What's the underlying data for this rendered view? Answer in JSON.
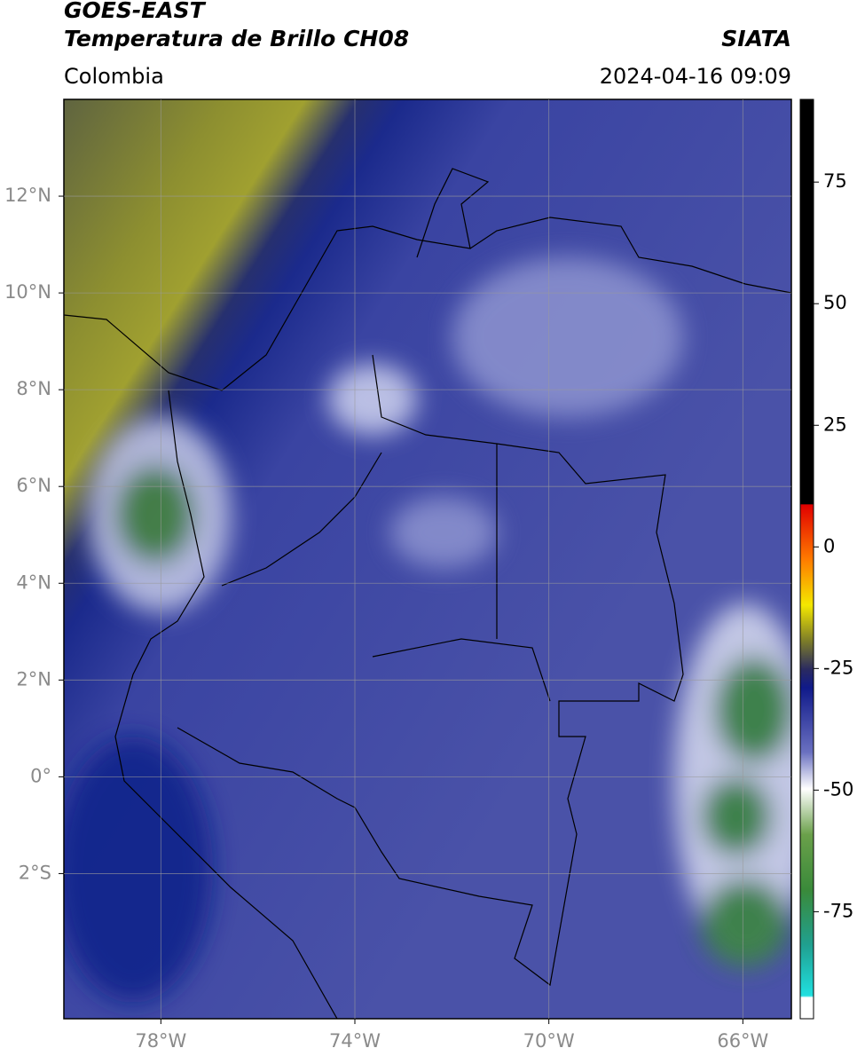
{
  "header": {
    "title": "GOES-EAST",
    "subtitle": "Temperatura de Brillo CH08",
    "source": "SIATA",
    "region": "Colombia",
    "datetime": "2024-04-16 09:09"
  },
  "map": {
    "xlim": [
      -80,
      -65
    ],
    "ylim": [
      -5,
      14
    ],
    "xticks": [
      {
        "value": -78,
        "label": "78°W"
      },
      {
        "value": -74,
        "label": "74°W"
      },
      {
        "value": -70,
        "label": "70°W"
      },
      {
        "value": -66,
        "label": "66°W"
      }
    ],
    "yticks": [
      {
        "value": 12,
        "label": "12°N"
      },
      {
        "value": 10,
        "label": "10°N"
      },
      {
        "value": 8,
        "label": "8°N"
      },
      {
        "value": 6,
        "label": "6°N"
      },
      {
        "value": 4,
        "label": "4°N"
      },
      {
        "value": 2,
        "label": "2°N"
      },
      {
        "value": 0,
        "label": "0°"
      },
      {
        "value": -2,
        "label": "2°S"
      }
    ],
    "grid": true
  },
  "colorbar": {
    "ylim": [
      -97,
      92
    ],
    "ticks": [
      75,
      50,
      25,
      0,
      -25,
      -50,
      -75
    ]
  }
}
